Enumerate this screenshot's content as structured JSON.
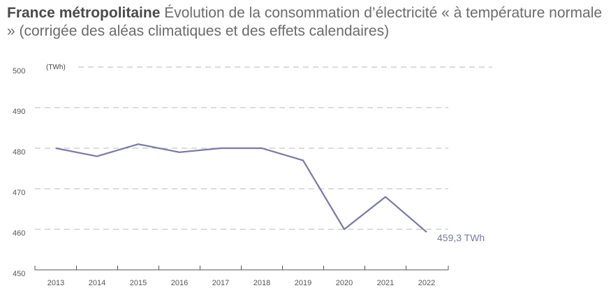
{
  "title_bold": "France métropolitaine",
  "title_rest": "Évolution de la consommation d’électricité « à température normale » (corrigée des aléas climatiques et des effets calendaires)",
  "chart_data": {
    "type": "line",
    "unit_label": "(TWh)",
    "x": [
      "2013",
      "2014",
      "2015",
      "2016",
      "2017",
      "2018",
      "2019",
      "2020",
      "2021",
      "2022"
    ],
    "series": [
      {
        "values": [
          480,
          478,
          481,
          479,
          480,
          480,
          477,
          460,
          468,
          459.3
        ]
      }
    ],
    "ylim": [
      450,
      500
    ],
    "yticks": [
      450,
      460,
      470,
      480,
      490,
      500
    ],
    "grid": true,
    "last_point_label": "459,3 TWh",
    "line_color": "#7a78a8"
  }
}
